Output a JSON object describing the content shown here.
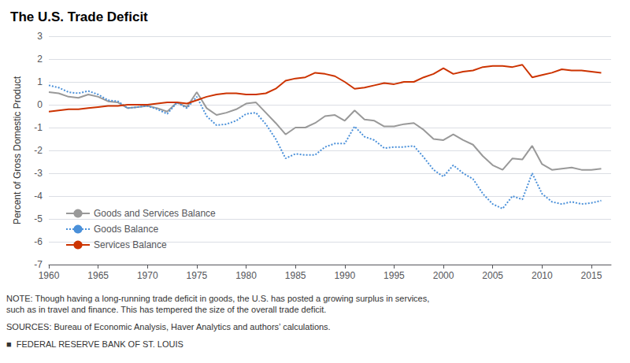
{
  "chart_data": {
    "type": "line",
    "title": "The U.S. Trade Deficit",
    "ylabel": "Percent of Gross Domestic Product",
    "annotations": [
      "NOTE: Though having a long-running trade deficit in goods, the U.S. has posted a growing surplus in services,\nsuch as in travel and finance. This has tempered the size of the overall trade deficit.",
      "SOURCES: Bureau of Economic Analysis, Haver Analytics and authors’ calculations.",
      "■  FEDERAL RESERVE BANK OF ST. LOUIS"
    ],
    "x": [
      1960,
      1961,
      1962,
      1963,
      1964,
      1965,
      1966,
      1967,
      1968,
      1969,
      1970,
      1971,
      1972,
      1973,
      1974,
      1975,
      1976,
      1977,
      1978,
      1979,
      1980,
      1981,
      1982,
      1983,
      1984,
      1985,
      1986,
      1987,
      1988,
      1989,
      1990,
      1991,
      1992,
      1993,
      1994,
      1995,
      1996,
      1997,
      1998,
      1999,
      2000,
      2001,
      2002,
      2003,
      2004,
      2005,
      2006,
      2007,
      2008,
      2009,
      2010,
      2011,
      2012,
      2013,
      2014,
      2015,
      2016
    ],
    "series": [
      {
        "name": "Goods and Services Balance",
        "color": "#999999",
        "line_style": "solid",
        "values": [
          0.55,
          0.5,
          0.35,
          0.3,
          0.45,
          0.35,
          0.15,
          0.1,
          -0.15,
          -0.1,
          -0.05,
          -0.15,
          -0.3,
          0.1,
          -0.1,
          0.55,
          -0.15,
          -0.45,
          -0.35,
          -0.2,
          0.05,
          0.1,
          -0.35,
          -0.8,
          -1.3,
          -1.0,
          -1.0,
          -0.8,
          -0.5,
          -0.45,
          -0.7,
          -0.25,
          -0.65,
          -0.7,
          -0.95,
          -0.95,
          -0.85,
          -0.8,
          -1.1,
          -1.5,
          -1.55,
          -1.3,
          -1.55,
          -1.75,
          -2.25,
          -2.65,
          -2.85,
          -2.35,
          -2.4,
          -1.8,
          -2.6,
          -2.85,
          -2.8,
          -2.75,
          -2.85,
          -2.85,
          -2.8
        ]
      },
      {
        "name": "Goods Balance",
        "color": "#4a90d9",
        "line_style": "dotted",
        "values": [
          0.85,
          0.75,
          0.55,
          0.5,
          0.6,
          0.45,
          0.2,
          0.15,
          -0.15,
          -0.1,
          -0.05,
          -0.2,
          -0.4,
          0.1,
          -0.15,
          0.35,
          -0.5,
          -0.9,
          -0.85,
          -0.7,
          -0.4,
          -0.35,
          -0.85,
          -1.5,
          -2.35,
          -2.15,
          -2.2,
          -2.2,
          -1.85,
          -1.7,
          -1.7,
          -0.95,
          -1.4,
          -1.55,
          -1.9,
          -1.85,
          -1.85,
          -1.8,
          -2.3,
          -2.85,
          -3.15,
          -2.65,
          -3.0,
          -3.25,
          -3.9,
          -4.35,
          -4.55,
          -4.0,
          -4.15,
          -3.0,
          -3.9,
          -4.25,
          -4.35,
          -4.25,
          -4.35,
          -4.3,
          -4.2
        ]
      },
      {
        "name": "Services Balance",
        "color": "#cc3300",
        "line_style": "solid",
        "values": [
          -0.3,
          -0.25,
          -0.2,
          -0.2,
          -0.15,
          -0.1,
          -0.05,
          -0.05,
          0.0,
          0.0,
          0.0,
          0.05,
          0.1,
          0.1,
          0.05,
          0.2,
          0.35,
          0.45,
          0.5,
          0.5,
          0.45,
          0.45,
          0.5,
          0.7,
          1.05,
          1.15,
          1.2,
          1.4,
          1.35,
          1.25,
          1.0,
          0.7,
          0.75,
          0.85,
          0.95,
          0.9,
          1.0,
          1.0,
          1.2,
          1.35,
          1.6,
          1.35,
          1.45,
          1.5,
          1.65,
          1.7,
          1.7,
          1.65,
          1.75,
          1.2,
          1.3,
          1.4,
          1.55,
          1.5,
          1.5,
          1.45,
          1.4
        ]
      }
    ],
    "xlim": [
      1960,
      2017
    ],
    "xticks": [
      1960,
      1965,
      1970,
      1975,
      1980,
      1985,
      1990,
      1995,
      2000,
      2005,
      2010,
      2015
    ],
    "ylim": [
      -7,
      3
    ],
    "yticks": [
      -7,
      -6,
      -5,
      -4,
      -3,
      -2,
      -1,
      0,
      1,
      2,
      3
    ],
    "grid": true,
    "legend": "lower left"
  }
}
